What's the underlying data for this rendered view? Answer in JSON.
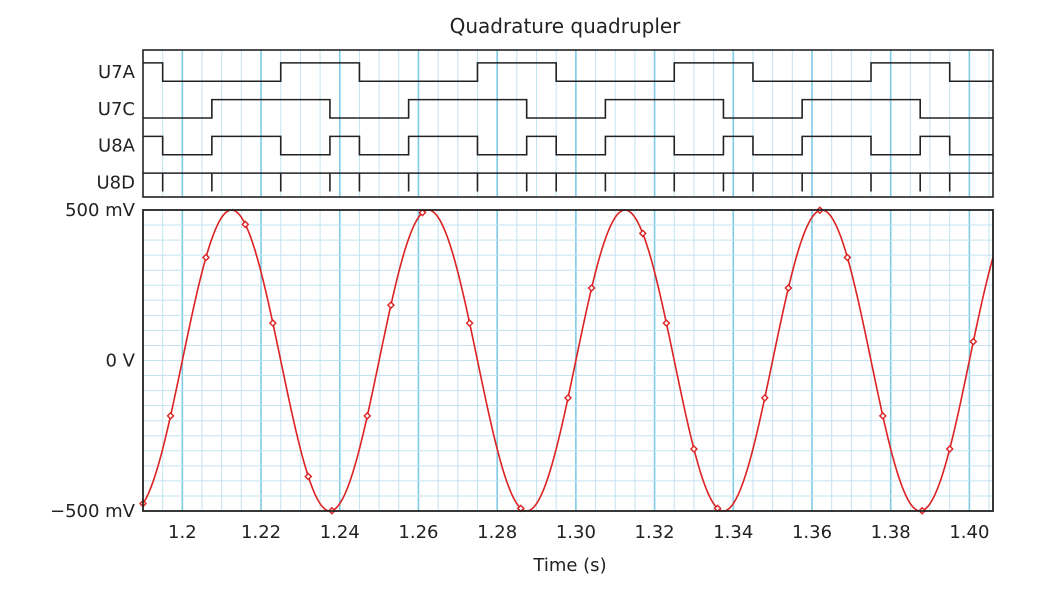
{
  "chart_data": {
    "type": "line",
    "title": "Quadrature quadrupler",
    "xlabel": "Time (s)",
    "xlim": [
      1.19,
      1.406
    ],
    "x_ticks": [
      1.2,
      1.22,
      1.24,
      1.26,
      1.28,
      1.3,
      1.32,
      1.34,
      1.36,
      1.38,
      1.4
    ],
    "x_tick_labels": [
      "1.2",
      "1.22",
      "1.24",
      "1.26",
      "1.28",
      "1.30",
      "1.32",
      "1.34",
      "1.36",
      "1.38",
      "1.40"
    ],
    "grid": true,
    "colors": {
      "analog": "#dd2222",
      "grid_major": "#7fcbe6",
      "grid_minor": "#c3e3f1",
      "digital": "#222222"
    },
    "digital_traces": [
      {
        "name": "U7A",
        "initial": 1,
        "transitions": [
          1.195,
          1.225,
          1.245,
          1.275,
          1.295,
          1.325,
          1.345,
          1.375,
          1.395
        ]
      },
      {
        "name": "U7C",
        "initial": 0,
        "transitions": [
          1.2075,
          1.2375,
          1.2575,
          1.2875,
          1.3075,
          1.3375,
          1.3575,
          1.3875
        ]
      },
      {
        "name": "U8A",
        "initial": 1,
        "transitions": [
          1.195,
          1.2075,
          1.225,
          1.2375,
          1.245,
          1.2575,
          1.275,
          1.2875,
          1.295,
          1.3075,
          1.325,
          1.3375,
          1.345,
          1.3575,
          1.375,
          1.3875,
          1.395
        ]
      },
      {
        "name": "U8D",
        "type": "pulses",
        "pulses": [
          1.195,
          1.2075,
          1.225,
          1.2375,
          1.245,
          1.2575,
          1.275,
          1.2875,
          1.295,
          1.3075,
          1.325,
          1.3375,
          1.345,
          1.3575,
          1.375,
          1.3875,
          1.395
        ]
      }
    ],
    "analog": {
      "name": "",
      "ylim": [
        -0.5,
        0.5
      ],
      "y_ticks": [
        0.5,
        0,
        -0.5
      ],
      "y_tick_labels": [
        "500 mV",
        "0 V",
        "−500 mV"
      ],
      "amplitude": 0.5,
      "frequency_hz": 20,
      "phase_peak_x": 1.2125,
      "markers_x": [
        1.19,
        1.197,
        1.206,
        1.216,
        1.223,
        1.232,
        1.238,
        1.247,
        1.253,
        1.261,
        1.273,
        1.286,
        1.298,
        1.304,
        1.317,
        1.323,
        1.33,
        1.336,
        1.348,
        1.354,
        1.362,
        1.369,
        1.378,
        1.388,
        1.395,
        1.401
      ]
    }
  }
}
